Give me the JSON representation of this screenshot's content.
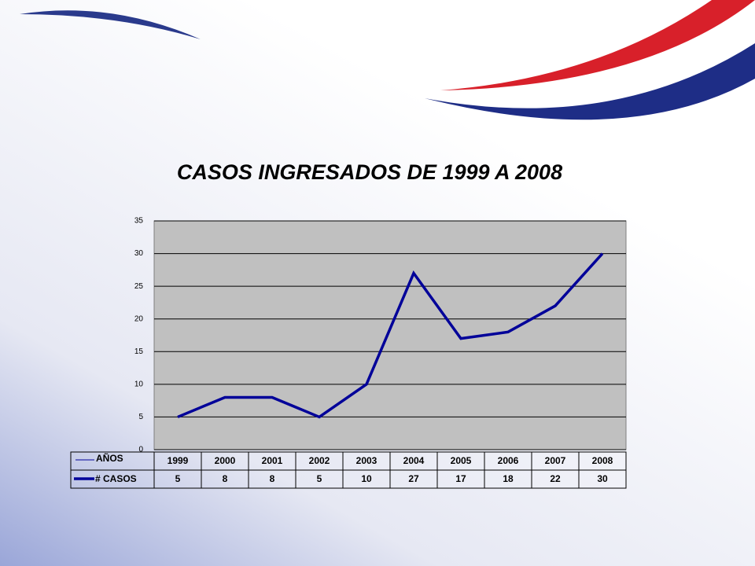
{
  "chart_data": {
    "type": "line",
    "title": "CASOS INGRESADOS DE 1999 A 2008",
    "x_label": "AÑOS",
    "categories": [
      "1999",
      "2000",
      "2001",
      "2002",
      "2003",
      "2004",
      "2005",
      "2006",
      "2007",
      "2008"
    ],
    "series": [
      {
        "name": "# CASOS",
        "color": "#000099",
        "values": [
          5,
          8,
          8,
          5,
          10,
          27,
          17,
          18,
          22,
          30
        ]
      }
    ],
    "ylim": [
      0,
      35
    ],
    "yticks": [
      0,
      5,
      10,
      15,
      20,
      25,
      30,
      35
    ],
    "grid": true
  }
}
